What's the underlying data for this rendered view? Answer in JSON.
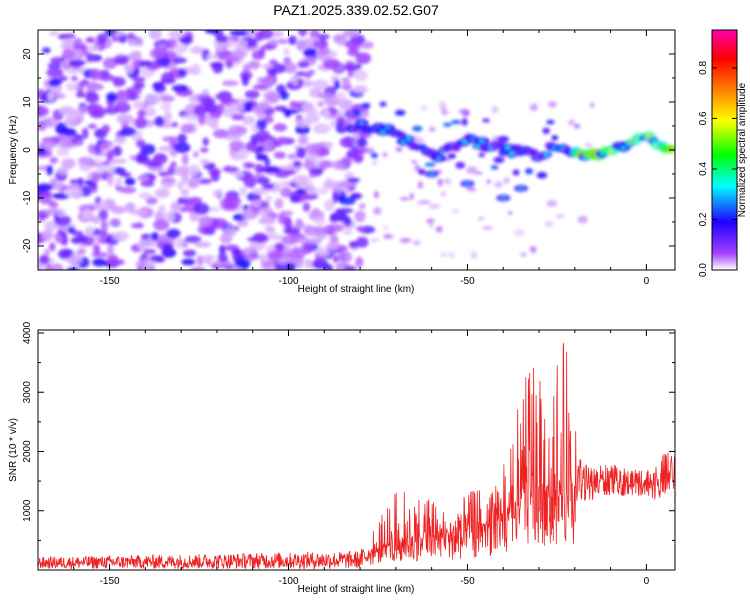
{
  "chart_data": [
    {
      "type": "heatmap",
      "title": "PAZ1.2025.339.02.52.G07",
      "xlabel": "Height of straight line (km)",
      "ylabel": "Frequency (Hz)",
      "xlim": [
        -170,
        8
      ],
      "ylim": [
        -25,
        25
      ],
      "xticks": [
        -150,
        -100,
        -50,
        0
      ],
      "yticks": [
        -20,
        -10,
        0,
        10,
        20
      ],
      "colorbar": {
        "label": "Normalized spectral amplitude",
        "range": [
          0,
          0.95
        ],
        "ticks": [
          0.0,
          0.2,
          0.4,
          0.6,
          0.8
        ],
        "colors": [
          "#ffffff",
          "#8000ff",
          "#0000ff",
          "#00ffff",
          "#00ff00",
          "#ffff00",
          "#ff8000",
          "#ff0000",
          "#ff00ff"
        ]
      },
      "signal_track": [
        {
          "x": -80,
          "y": 5
        },
        {
          "x": -72,
          "y": 4
        },
        {
          "x": -65,
          "y": 1
        },
        {
          "x": -58,
          "y": -1
        },
        {
          "x": -50,
          "y": 2
        },
        {
          "x": -45,
          "y": 1
        },
        {
          "x": -38,
          "y": 0
        },
        {
          "x": -30,
          "y": -1
        },
        {
          "x": -25,
          "y": 1
        },
        {
          "x": -18,
          "y": -1
        },
        {
          "x": -10,
          "y": -0.5
        },
        {
          "x": -5,
          "y": 1
        },
        {
          "x": 0,
          "y": 3
        },
        {
          "x": 3,
          "y": 1
        },
        {
          "x": 8,
          "y": 0
        }
      ],
      "secondary_branch": [
        {
          "x": -60,
          "y": -5
        },
        {
          "x": -50,
          "y": -7
        },
        {
          "x": -40,
          "y": -10
        },
        {
          "x": -35,
          "y": -8
        }
      ]
    },
    {
      "type": "line",
      "title": "",
      "xlabel": "Height of straight line (km)",
      "ylabel": "SNR (10 * v/v)",
      "xlim": [
        -170,
        8
      ],
      "ylim": [
        0,
        4050
      ],
      "xticks": [
        -150,
        -100,
        -50,
        0
      ],
      "yticks": [
        1000,
        2000,
        3000,
        4000
      ],
      "line_color": "#ee2222",
      "envelope": {
        "x": [
          -170,
          -100,
          -80,
          -78,
          -70,
          -65,
          -60,
          -55,
          -50,
          -45,
          -40,
          -35,
          -32,
          -28,
          -25,
          -22,
          -20,
          -18,
          -15,
          -10,
          -5,
          0,
          3,
          5,
          8
        ],
        "baseline": [
          100,
          120,
          150,
          250,
          450,
          500,
          550,
          550,
          650,
          700,
          850,
          1100,
          1400,
          1200,
          1300,
          1200,
          900,
          1300,
          1400,
          1450,
          1450,
          1450,
          1350,
          1450,
          1500
        ],
        "peak": [
          220,
          300,
          320,
          500,
          1400,
          1300,
          1200,
          950,
          1300,
          1450,
          1750,
          3000,
          3750,
          3350,
          4000,
          3750,
          2350,
          1700,
          1650,
          1700,
          1600,
          1600,
          1650,
          1900,
          1900
        ]
      }
    }
  ]
}
